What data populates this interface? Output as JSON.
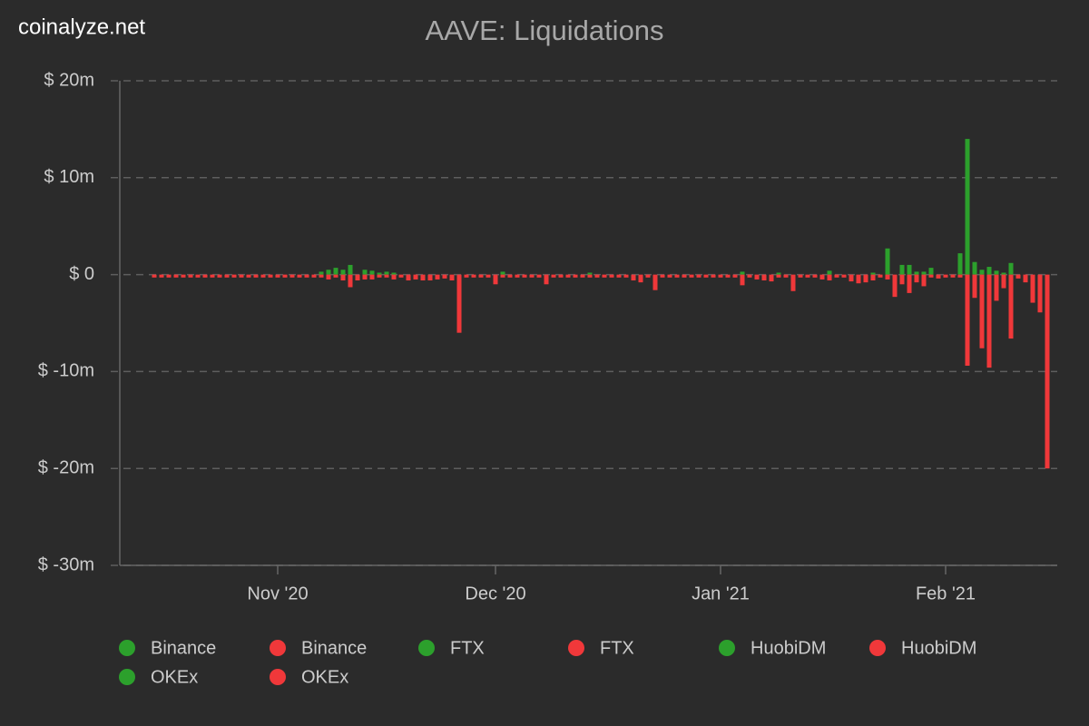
{
  "chart_data": {
    "type": "bar",
    "watermark": "coinalyze.net",
    "title": "AAVE: Liquidations",
    "stacked": true,
    "grid": true,
    "ylim": [
      -30,
      20
    ],
    "yticks": [
      {
        "value": 20,
        "label": "$ 20m"
      },
      {
        "value": 10,
        "label": "$ 10m"
      },
      {
        "value": 0,
        "label": "$ 0"
      },
      {
        "value": -10,
        "label": "$ -10m"
      },
      {
        "value": -20,
        "label": "$ -20m"
      },
      {
        "value": -30,
        "label": "$ -30m"
      }
    ],
    "categories": [
      null,
      null,
      null,
      null,
      null,
      null,
      null,
      null,
      null,
      null,
      null,
      null,
      null,
      null,
      null,
      null,
      null,
      "Nov '20",
      null,
      null,
      null,
      null,
      null,
      null,
      null,
      null,
      null,
      null,
      null,
      null,
      null,
      null,
      null,
      null,
      null,
      null,
      null,
      null,
      null,
      null,
      null,
      null,
      null,
      null,
      null,
      null,
      null,
      "Dec '20",
      null,
      null,
      null,
      null,
      null,
      null,
      null,
      null,
      null,
      null,
      null,
      null,
      null,
      null,
      null,
      null,
      null,
      null,
      null,
      null,
      null,
      null,
      null,
      null,
      null,
      null,
      null,
      null,
      null,
      null,
      "Jan '21",
      null,
      null,
      null,
      null,
      null,
      null,
      null,
      null,
      null,
      null,
      null,
      null,
      null,
      null,
      null,
      null,
      null,
      null,
      null,
      null,
      null,
      null,
      null,
      null,
      null,
      null,
      null,
      null,
      null,
      null,
      "Feb '21",
      null,
      null,
      null,
      null,
      null,
      null,
      null,
      null,
      null,
      null,
      null,
      null,
      null,
      null
    ],
    "series": [
      {
        "name": "Binance",
        "color": "#2ca02c",
        "values": [
          0,
          0,
          0,
          0,
          0,
          0,
          0,
          0,
          0,
          0,
          0,
          0,
          0,
          0,
          0,
          0,
          0,
          0,
          0,
          0,
          0,
          0,
          0,
          0.3,
          0.5,
          0.7,
          0.5,
          1.0,
          0,
          0.5,
          0.4,
          0.2,
          0.3,
          0.2,
          0,
          0,
          0,
          0,
          0,
          0,
          0,
          0,
          0,
          0,
          0,
          0,
          0,
          0,
          0.3,
          0,
          0,
          0,
          0,
          0,
          0,
          0,
          0,
          0,
          0,
          0,
          0.2,
          0,
          0,
          0,
          0,
          0,
          0,
          0,
          0,
          0,
          0,
          0,
          0,
          0,
          0,
          0,
          0,
          0,
          0,
          0,
          0,
          0.3,
          0,
          0,
          0,
          0,
          0.2,
          0,
          0,
          0,
          0,
          0,
          0,
          0.4,
          0,
          0,
          0,
          0,
          0,
          0.2,
          0,
          2.7,
          0,
          1.0,
          1.0,
          0.3,
          0.3,
          0.7,
          0,
          0,
          0,
          2.2,
          14,
          1.3,
          0.5,
          0.8,
          0.4,
          0.2,
          1.2,
          0,
          0,
          0,
          0,
          0
        ]
      },
      {
        "name": "Binance",
        "color": "#f0383a",
        "values": [
          -0.3,
          -0.3,
          -0.3,
          -0.3,
          -0.3,
          -0.3,
          -0.3,
          -0.3,
          -0.3,
          -0.3,
          -0.3,
          -0.3,
          -0.3,
          -0.3,
          -0.3,
          -0.3,
          -0.3,
          -0.3,
          -0.3,
          -0.3,
          -0.3,
          -0.3,
          -0.3,
          -0.3,
          -0.5,
          -0.3,
          -0.6,
          -1.3,
          -0.6,
          -0.5,
          -0.5,
          -0.3,
          -0.3,
          -0.5,
          -0.3,
          -0.6,
          -0.5,
          -0.6,
          -0.6,
          -0.5,
          -0.4,
          -0.6,
          -6,
          -0.3,
          -0.3,
          -0.3,
          -0.3,
          -1.0,
          -0.3,
          -0.3,
          -0.3,
          -0.3,
          -0.3,
          -0.3,
          -1.0,
          -0.3,
          -0.3,
          -0.3,
          -0.3,
          -0.3,
          -0.3,
          -0.3,
          -0.3,
          -0.3,
          -0.3,
          -0.3,
          -0.6,
          -0.8,
          -0.3,
          -1.6,
          -0.3,
          -0.3,
          -0.3,
          -0.3,
          -0.3,
          -0.3,
          -0.3,
          -0.3,
          -0.3,
          -0.3,
          -0.3,
          -1.1,
          -0.3,
          -0.5,
          -0.6,
          -0.7,
          -0.3,
          -0.3,
          -1.7,
          -0.3,
          -0.3,
          -0.3,
          -0.5,
          -0.6,
          -0.3,
          -0.3,
          -0.7,
          -0.9,
          -0.8,
          -0.6,
          -0.3,
          -0.5,
          -2.3,
          -1.0,
          -1.9,
          -0.8,
          -1.2,
          -0.3,
          -0.4,
          -0.3,
          -0.3,
          -0.3,
          -9.4,
          -2.4,
          -7.6,
          -9.6,
          -2.7,
          -1.4,
          -6.6,
          -0.4,
          -0.8,
          -2.9,
          -3.9,
          -20
        ]
      },
      {
        "name": "FTX",
        "color": "#2ca02c",
        "values": [
          0,
          0,
          0,
          0,
          0,
          0,
          0,
          0,
          0,
          0,
          0,
          0,
          0,
          0,
          0,
          0,
          0,
          0,
          0,
          0,
          0,
          0,
          0,
          0,
          0,
          0,
          0,
          0,
          0,
          0,
          0,
          0,
          0,
          0,
          0,
          0,
          0,
          0,
          0,
          0,
          0,
          0,
          0,
          0,
          0,
          0,
          0,
          0,
          0,
          0,
          0,
          0,
          0,
          0,
          0,
          0,
          0,
          0,
          0,
          0,
          0,
          0,
          0,
          0,
          0,
          0,
          0,
          0,
          0,
          0,
          0,
          0,
          0,
          0,
          0,
          0,
          0,
          0,
          0,
          0,
          0,
          0,
          0,
          0,
          0,
          0,
          0,
          0,
          0,
          0,
          0,
          0,
          0,
          0,
          0,
          0,
          0,
          0,
          0,
          0,
          0,
          0,
          0,
          0,
          0,
          0,
          0,
          0,
          0,
          0,
          0,
          0,
          0,
          0,
          0,
          0,
          0,
          0,
          0,
          0,
          0,
          0,
          0,
          0
        ]
      },
      {
        "name": "FTX",
        "color": "#f0383a",
        "values": [
          0,
          0,
          0,
          0,
          0,
          0,
          0,
          0,
          0,
          0,
          0,
          0,
          0,
          0,
          0,
          0,
          0,
          0,
          0,
          0,
          0,
          0,
          0,
          0,
          0,
          0,
          0,
          0,
          0,
          0,
          0,
          0,
          0,
          0,
          0,
          0,
          0,
          0,
          0,
          0,
          0,
          0,
          0,
          0,
          0,
          0,
          0,
          0,
          0,
          0,
          0,
          0,
          0,
          0,
          0,
          0,
          0,
          0,
          0,
          0,
          0,
          0,
          0,
          0,
          0,
          0,
          0,
          0,
          0,
          0,
          0,
          0,
          0,
          0,
          0,
          0,
          0,
          0,
          0,
          0,
          0,
          0,
          0,
          0,
          0,
          0,
          0,
          0,
          0,
          0,
          0,
          0,
          0,
          0,
          0,
          0,
          0,
          0,
          0,
          0,
          0,
          0,
          0,
          0,
          0,
          0,
          0,
          0,
          0,
          0,
          0,
          0,
          0,
          0,
          0,
          0,
          0,
          0,
          0,
          0,
          0,
          0,
          0,
          0
        ]
      },
      {
        "name": "HuobiDM",
        "color": "#2ca02c",
        "values": [
          0,
          0,
          0,
          0,
          0,
          0,
          0,
          0,
          0,
          0,
          0,
          0,
          0,
          0,
          0,
          0,
          0,
          0,
          0,
          0,
          0,
          0,
          0,
          0,
          0,
          0,
          0,
          0,
          0,
          0,
          0,
          0,
          0,
          0,
          0,
          0,
          0,
          0,
          0,
          0,
          0,
          0,
          0,
          0,
          0,
          0,
          0,
          0,
          0,
          0,
          0,
          0,
          0,
          0,
          0,
          0,
          0,
          0,
          0,
          0,
          0,
          0,
          0,
          0,
          0,
          0,
          0,
          0,
          0,
          0,
          0,
          0,
          0,
          0,
          0,
          0,
          0,
          0,
          0,
          0,
          0,
          0,
          0,
          0,
          0,
          0,
          0,
          0,
          0,
          0,
          0,
          0,
          0,
          0,
          0,
          0,
          0,
          0,
          0,
          0,
          0,
          0,
          0,
          0,
          0,
          0,
          0,
          0,
          0,
          0,
          0,
          0,
          0,
          0,
          0,
          0,
          0,
          0,
          0,
          0,
          0,
          0,
          0,
          0
        ]
      },
      {
        "name": "HuobiDM",
        "color": "#f0383a",
        "values": [
          0,
          0,
          0,
          0,
          0,
          0,
          0,
          0,
          0,
          0,
          0,
          0,
          0,
          0,
          0,
          0,
          0,
          0,
          0,
          0,
          0,
          0,
          0,
          0,
          0,
          0,
          0,
          0,
          0,
          0,
          0,
          0,
          0,
          0,
          0,
          0,
          0,
          0,
          0,
          0,
          0,
          0,
          0,
          0,
          0,
          0,
          0,
          0,
          0,
          0,
          0,
          0,
          0,
          0,
          0,
          0,
          0,
          0,
          0,
          0,
          0,
          0,
          0,
          0,
          0,
          0,
          0,
          0,
          0,
          0,
          0,
          0,
          0,
          0,
          0,
          0,
          0,
          0,
          0,
          0,
          0,
          0,
          0,
          0,
          0,
          0,
          0,
          0,
          0,
          0,
          0,
          0,
          0,
          0,
          0,
          0,
          0,
          0,
          0,
          0,
          0,
          0,
          0,
          0,
          0,
          0,
          0,
          0,
          0,
          0,
          0,
          0,
          0,
          0,
          0,
          0,
          0,
          0,
          0,
          0,
          0,
          0,
          0,
          0
        ]
      },
      {
        "name": "OKEx",
        "color": "#2ca02c",
        "values": [
          0,
          0,
          0,
          0,
          0,
          0,
          0,
          0,
          0,
          0,
          0,
          0,
          0,
          0,
          0,
          0,
          0,
          0,
          0,
          0,
          0,
          0,
          0,
          0,
          0,
          0,
          0,
          0,
          0,
          0,
          0,
          0,
          0,
          0,
          0,
          0,
          0,
          0,
          0,
          0,
          0,
          0,
          0,
          0,
          0,
          0,
          0,
          0,
          0,
          0,
          0,
          0,
          0,
          0,
          0,
          0,
          0,
          0,
          0,
          0,
          0,
          0,
          0,
          0,
          0,
          0,
          0,
          0,
          0,
          0,
          0,
          0,
          0,
          0,
          0,
          0,
          0,
          0,
          0,
          0,
          0,
          0,
          0,
          0,
          0,
          0,
          0,
          0,
          0,
          0,
          0,
          0,
          0,
          0,
          0,
          0,
          0,
          0,
          0,
          0,
          0,
          0,
          0,
          0,
          0,
          0,
          0,
          0,
          0,
          0,
          0,
          0,
          0,
          0,
          0,
          0,
          0,
          0,
          0,
          0,
          0,
          0,
          0,
          0
        ]
      },
      {
        "name": "OKEx",
        "color": "#f0383a",
        "values": [
          0,
          0,
          0,
          0,
          0,
          0,
          0,
          0,
          0,
          0,
          0,
          0,
          0,
          0,
          0,
          0,
          0,
          0,
          0,
          0,
          0,
          0,
          0,
          0,
          0,
          0,
          0,
          0,
          0,
          0,
          0,
          0,
          0,
          0,
          0,
          0,
          0,
          0,
          0,
          0,
          0,
          0,
          0,
          0,
          0,
          0,
          0,
          0,
          0,
          0,
          0,
          0,
          0,
          0,
          0,
          0,
          0,
          0,
          0,
          0,
          0,
          0,
          0,
          0,
          0,
          0,
          0,
          0,
          0,
          0,
          0,
          0,
          0,
          0,
          0,
          0,
          0,
          0,
          0,
          0,
          0,
          0,
          0,
          0,
          0,
          0,
          0,
          0,
          0,
          0,
          0,
          0,
          0,
          0,
          0,
          0,
          0,
          0,
          0,
          0,
          0,
          0,
          0,
          0,
          0,
          0,
          0,
          0,
          0,
          0,
          0,
          0,
          0,
          0,
          0,
          0,
          0,
          0,
          0,
          0,
          0,
          0,
          0,
          0
        ]
      }
    ]
  }
}
